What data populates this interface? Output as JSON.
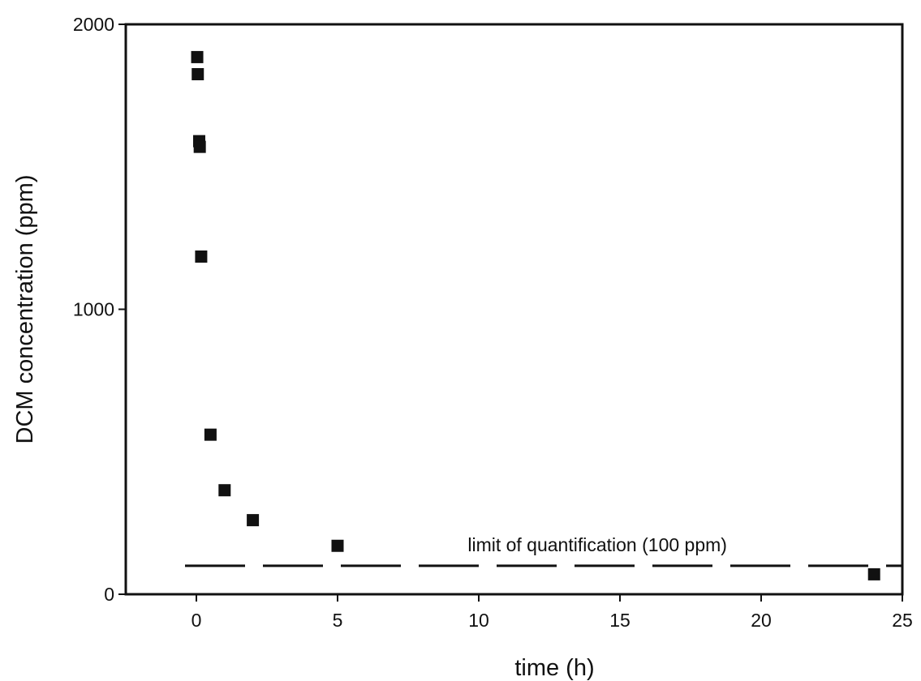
{
  "chart_data": {
    "type": "scatter",
    "title": "",
    "xlabel": "time (h)",
    "ylabel": "DCM concentration (ppm)",
    "xlim": [
      -2.5,
      25
    ],
    "ylim": [
      0,
      2000
    ],
    "x_ticks": [
      0,
      5,
      10,
      15,
      20,
      25
    ],
    "x_tick_labels": [
      "0",
      "5",
      "10",
      "15",
      "20",
      "25"
    ],
    "y_ticks": [
      0,
      1000,
      2000
    ],
    "y_tick_labels": [
      "0",
      "1000",
      "2000"
    ],
    "grid": false,
    "legend": "none",
    "marker": "square",
    "colors": {
      "marker": "#111111",
      "axis": "#111111",
      "line": "#111111"
    },
    "series": [
      {
        "x": [
          0.03,
          0.05,
          0.1,
          0.12,
          0.17,
          0.5,
          1,
          2,
          5,
          24
        ],
        "y": [
          1885,
          1825,
          1590,
          1570,
          1185,
          560,
          365,
          260,
          170,
          70
        ]
      }
    ],
    "reference_line": {
      "y": 100,
      "style": "dashed",
      "label": "limit of quantification (100 ppm)"
    }
  }
}
